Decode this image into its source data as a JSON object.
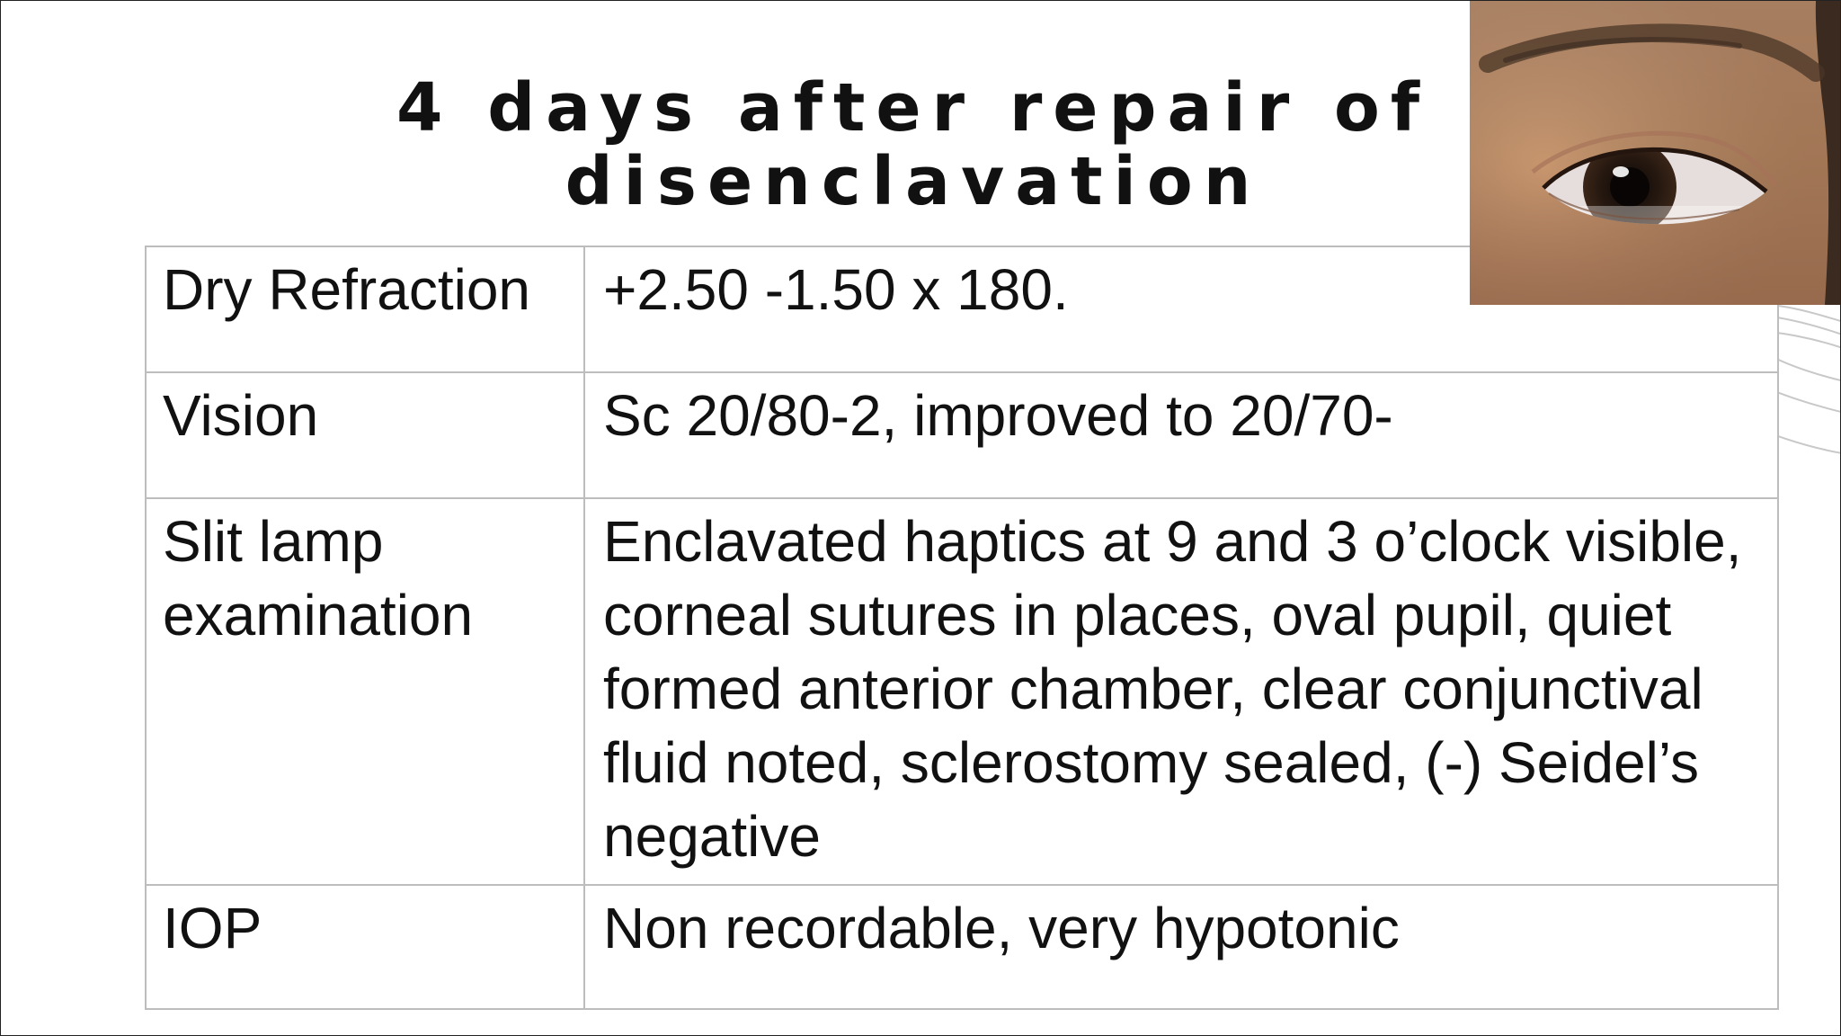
{
  "slide": {
    "title_line1": "4 days after repair of",
    "title_line2": "disenclavation"
  },
  "table": {
    "rows": [
      {
        "label": "Dry Refraction",
        "value": "+2.50 -1.50 x 180."
      },
      {
        "label": "Vision",
        "value": "Sc 20/80-2, improved to 20/70-"
      },
      {
        "label_line1": "Slit lamp",
        "label_line2": "examination",
        "value": "Enclavated haptics at 9 and 3 o’clock visible, corneal sutures in places, oval pupil, quiet formed anterior chamber, clear conjunctival fluid noted, sclerostomy sealed, (-) Seidel’s negative"
      },
      {
        "label": "IOP",
        "value": "Non recordable, very hypotonic"
      }
    ]
  },
  "colors": {
    "text": "#111111",
    "table_border": "#bdbdbd",
    "decoration_stroke": "#c8c8c8",
    "iris": "#2a1c14",
    "skin": "#c89a78"
  }
}
